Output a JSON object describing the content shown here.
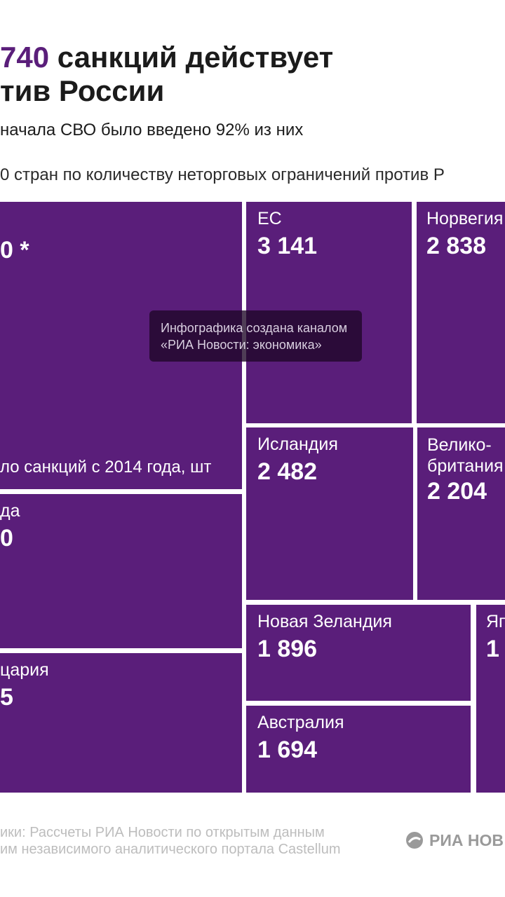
{
  "header": {
    "title_number": "740",
    "title_rest": "санкций действует",
    "title_line2": "тив России",
    "subtitle": "начала СВО было введено 92% из них",
    "caption": "0 стран по количеству неторговых ограничений против Р"
  },
  "watermark": {
    "line1": "Инфографика создана каналом",
    "line2": "«РИА Новости: экономика»"
  },
  "footer": {
    "source_line1": "ики: Рассчеты РИА Новости по открытым данным",
    "source_line2": "им независимого аналитического портала Castellum",
    "logo_text": "РИА НОВ"
  },
  "colors": {
    "tile": "#5a1e7a",
    "title_accent": "#5a1e7a"
  },
  "chart_data": {
    "type": "treemap",
    "unit": "шт",
    "tiles": [
      {
        "name": "",
        "value_label": "0 *",
        "note": "ло санкций с 2014 года, шт"
      },
      {
        "name": "ЕС",
        "value": 3141,
        "value_label": "3 141"
      },
      {
        "name": "Норвегия",
        "value": 2838,
        "value_label": "2 838"
      },
      {
        "name": "Исландия",
        "value": 2482,
        "value_label": "2 482"
      },
      {
        "name": "Велико-британия",
        "name_lines": [
          "Велико-",
          "британия"
        ],
        "value": 2204,
        "value_label": "2 204"
      },
      {
        "name": "да",
        "value_label": "0"
      },
      {
        "name": "Новая Зеландия",
        "value": 1896,
        "value_label": "1 896"
      },
      {
        "name": "Яп",
        "value_label": "1"
      },
      {
        "name": "цария",
        "value_label": "5"
      },
      {
        "name": "Австралия",
        "value": 1694,
        "value_label": "1 694"
      }
    ]
  }
}
